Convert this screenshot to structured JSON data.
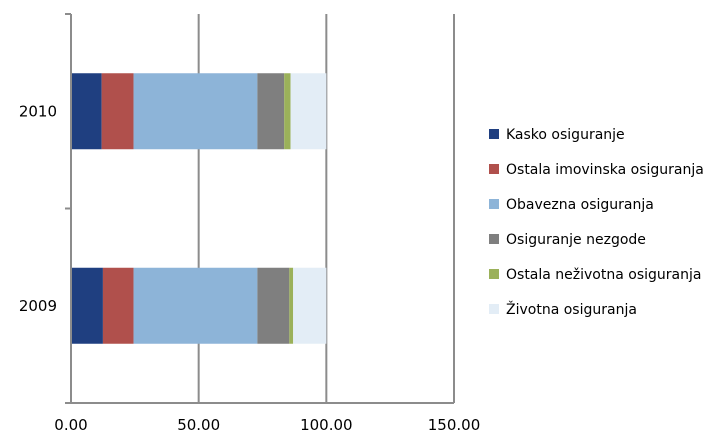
{
  "chart_data": {
    "type": "bar",
    "orientation": "horizontal",
    "stacked": true,
    "categories": [
      "2009",
      "2010"
    ],
    "series": [
      {
        "name": "Kasko osiguranje",
        "color": "#1f3f80",
        "values": [
          12.5,
          12.0
        ]
      },
      {
        "name": "Ostala imovinska osiguranja",
        "color": "#b0504c",
        "values": [
          12.0,
          12.5
        ]
      },
      {
        "name": "Obavezna osiguranja",
        "color": "#8db4d8",
        "values": [
          48.5,
          48.5
        ]
      },
      {
        "name": "Osiguranje nezgode",
        "color": "#7f7f7f",
        "values": [
          12.5,
          10.5
        ]
      },
      {
        "name": "Ostala neživotna osiguranja",
        "color": "#9bb15a",
        "values": [
          1.5,
          2.5
        ]
      },
      {
        "name": "Životna osiguranja",
        "color": "#e3edf6",
        "values": [
          13.0,
          14.0
        ]
      }
    ],
    "xlim": [
      0,
      150
    ],
    "xticks": [
      "0.00",
      "50.00",
      "100.00",
      "150.00"
    ],
    "grid": "vertical",
    "legend_position": "right",
    "title": "",
    "xlabel": "",
    "ylabel": ""
  }
}
